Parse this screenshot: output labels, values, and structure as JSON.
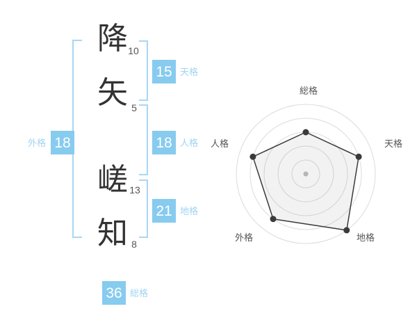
{
  "name_analysis": {
    "characters": [
      {
        "char": "降",
        "strokes": "10"
      },
      {
        "char": "矢",
        "strokes": "5"
      },
      {
        "char": "嵯",
        "strokes": "13"
      },
      {
        "char": "知",
        "strokes": "8"
      }
    ],
    "gokaku": {
      "tenkaku": {
        "label": "天格",
        "value": "15"
      },
      "jinkaku": {
        "label": "人格",
        "value": "18"
      },
      "chikaku": {
        "label": "地格",
        "value": "21"
      },
      "gaikaku": {
        "label": "外格",
        "value": "18"
      },
      "soukaku": {
        "label": "総格",
        "value": "36"
      }
    }
  },
  "chart_data": {
    "type": "radar",
    "axes": [
      "総格",
      "天格",
      "地格",
      "外格",
      "人格"
    ],
    "values": [
      3,
      4,
      5,
      4,
      4
    ],
    "max": 5,
    "rings": 5,
    "start_angle_deg": -90,
    "direction": "clockwise",
    "grid": "circular",
    "legend": false,
    "title": ""
  },
  "colors": {
    "badge_blue": "#87CBEF",
    "label_blue": "#9FD4F2",
    "bracket_blue": "#A8D7F3",
    "char_dark": "#333333",
    "stroke_count_gray": "#555555",
    "ring_gray": "#DBDBDB",
    "polygon_stroke": "#3A3A3A",
    "polygon_fill": "rgba(125,125,125,0.10)",
    "center_dot": "#BBBBBB"
  }
}
